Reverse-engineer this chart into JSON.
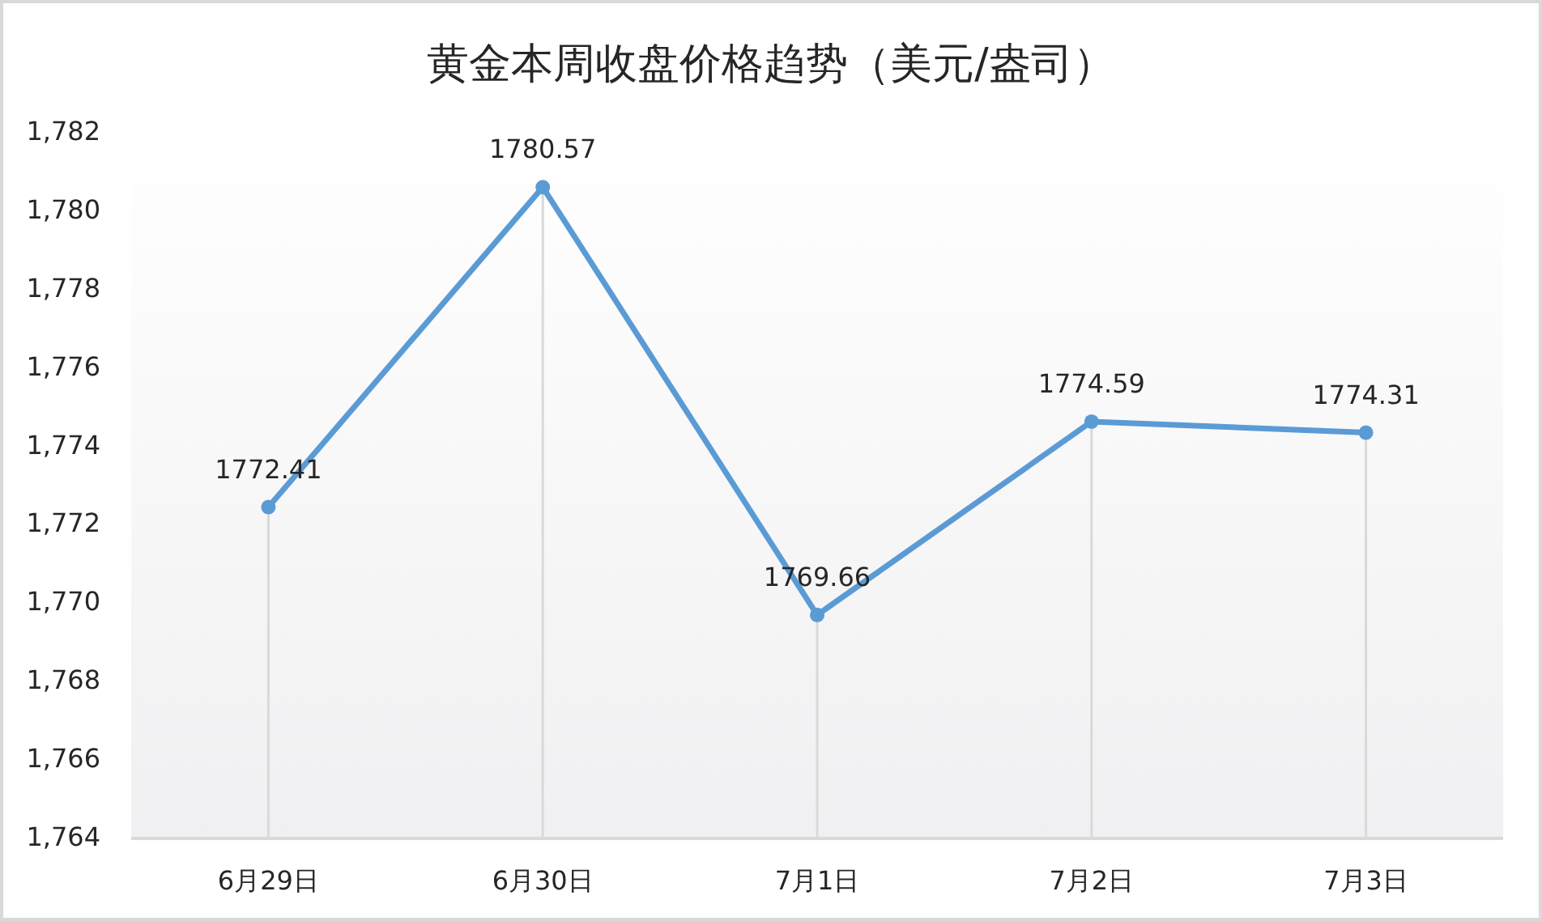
{
  "chart_data": {
    "type": "line",
    "title": "黄金本周收盘价格趋势（美元/盎司）",
    "categories": [
      "6月29日",
      "6月30日",
      "7月1日",
      "7月2日",
      "7月3日"
    ],
    "series": [
      {
        "color": "#5b9bd5",
        "values": [
          1772.41,
          1780.57,
          1769.66,
          1774.59,
          1774.31
        ]
      }
    ],
    "ylim": [
      1764,
      1782
    ],
    "yticks": [
      {
        "value": 1764,
        "label": "1,764"
      },
      {
        "value": 1766,
        "label": "1,766"
      },
      {
        "value": 1768,
        "label": "1,768"
      },
      {
        "value": 1770,
        "label": "1,770"
      },
      {
        "value": 1772,
        "label": "1,772"
      },
      {
        "value": 1774,
        "label": "1,774"
      },
      {
        "value": 1776,
        "label": "1,776"
      },
      {
        "value": 1778,
        "label": "1,778"
      },
      {
        "value": 1780,
        "label": "1,780"
      },
      {
        "value": 1782,
        "label": "1,782"
      }
    ],
    "marker": "circle",
    "line_style": "solid",
    "data_labels": true,
    "grid": "x"
  }
}
